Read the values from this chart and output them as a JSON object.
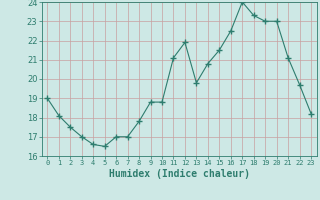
{
  "x": [
    0,
    1,
    2,
    3,
    4,
    5,
    6,
    7,
    8,
    9,
    10,
    11,
    12,
    13,
    14,
    15,
    16,
    17,
    18,
    19,
    20,
    21,
    22,
    23
  ],
  "y": [
    19.0,
    18.1,
    17.5,
    17.0,
    16.6,
    16.5,
    17.0,
    17.0,
    17.8,
    18.8,
    18.8,
    21.1,
    21.9,
    19.8,
    20.8,
    21.5,
    22.5,
    24.0,
    23.3,
    23.0,
    23.0,
    21.1,
    19.7,
    18.2
  ],
  "ylim": [
    16,
    24
  ],
  "yticks": [
    16,
    17,
    18,
    19,
    20,
    21,
    22,
    23,
    24
  ],
  "xlabel": "Humidex (Indice chaleur)",
  "line_color": "#2e7d6e",
  "marker_color": "#2e7d6e",
  "bg_color": "#cde8e5",
  "grid_color": "#c8a0a0",
  "tick_label_color": "#2e7d6e",
  "xlabel_color": "#2e7d6e",
  "xtick_labels": [
    "0",
    "1",
    "2",
    "3",
    "4",
    "5",
    "6",
    "7",
    "8",
    "9",
    "10",
    "11",
    "12",
    "13",
    "14",
    "15",
    "16",
    "17",
    "18",
    "19",
    "20",
    "21",
    "22",
    "23"
  ]
}
